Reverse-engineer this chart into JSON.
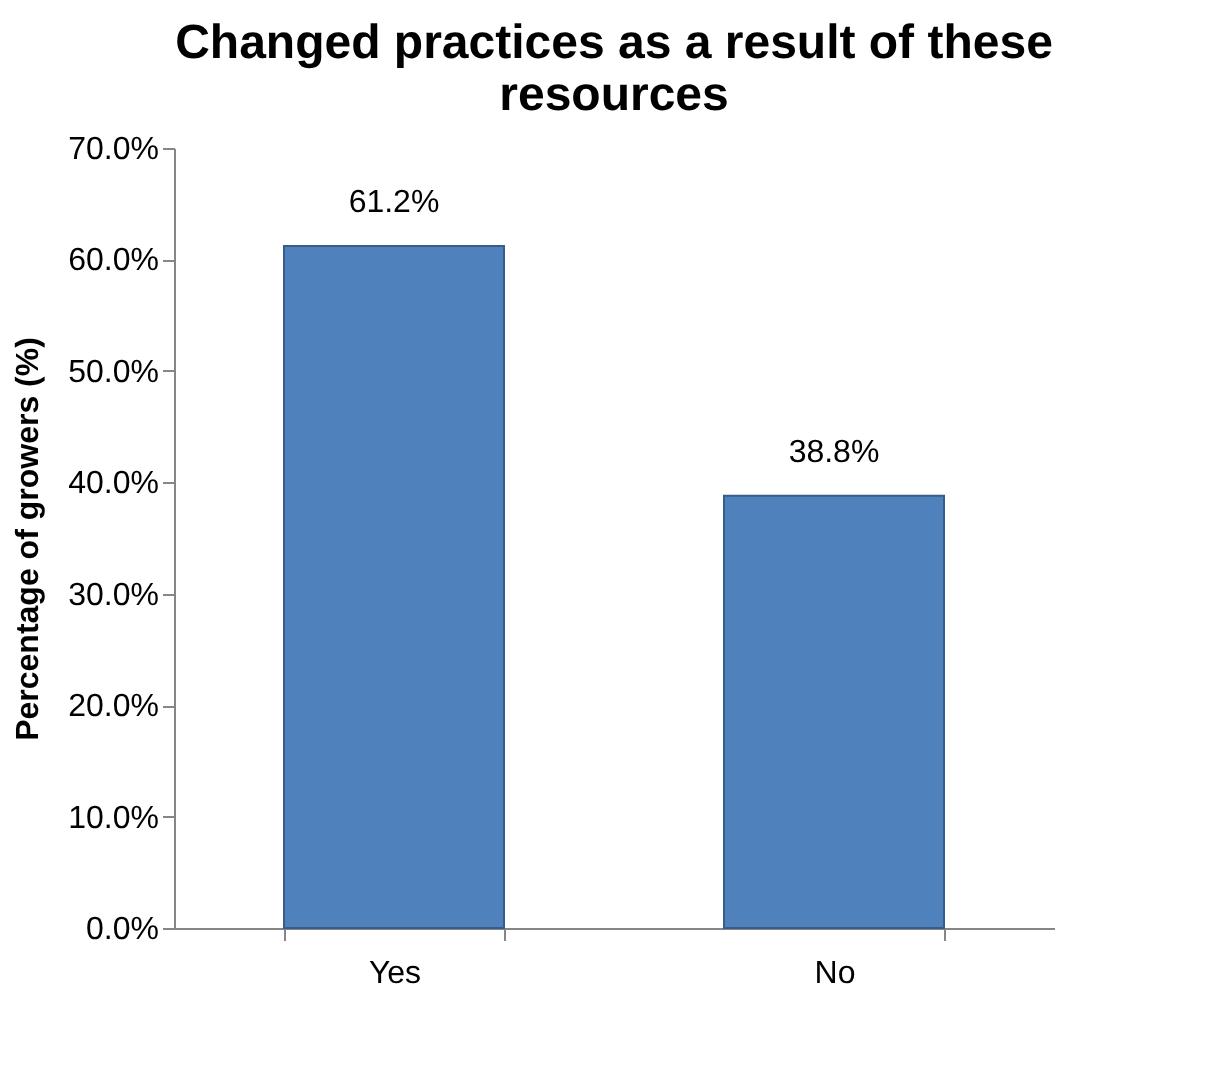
{
  "chart_data": {
    "type": "bar",
    "title": "Changed practices as a result of these resources",
    "ylabel": "Percentage of growers (%)",
    "categories": [
      "Yes",
      "No"
    ],
    "values": [
      61.2,
      38.8
    ],
    "value_labels": [
      "61.2%",
      "38.8%"
    ],
    "color": "#4f81bd",
    "ylim": [
      0,
      70
    ],
    "yticks": [
      {
        "value": 0,
        "label": "0.0%"
      },
      {
        "value": 10,
        "label": "10.0%"
      },
      {
        "value": 20,
        "label": "20.0%"
      },
      {
        "value": 30,
        "label": "30.0%"
      },
      {
        "value": 40,
        "label": "40.0%"
      },
      {
        "value": 50,
        "label": "50.0%"
      },
      {
        "value": 60,
        "label": "60.0%"
      },
      {
        "value": 70,
        "label": "70.0%"
      }
    ],
    "grid": false
  }
}
